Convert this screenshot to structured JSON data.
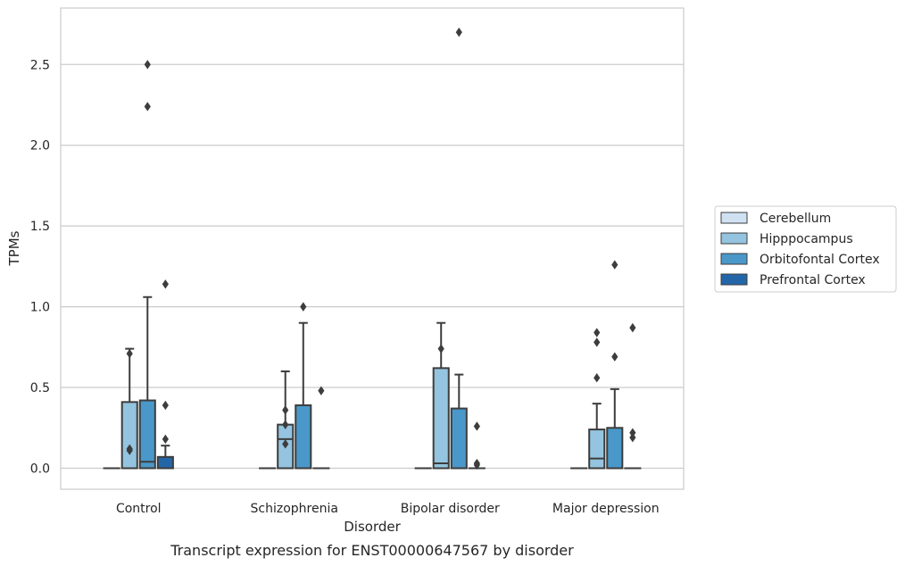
{
  "chart_data": {
    "type": "box",
    "title": "Transcript expression for ENST00000647567 by disorder",
    "xlabel": "Disorder",
    "ylabel": "TPMs",
    "ylim": [
      -0.13,
      2.85
    ],
    "yticks": [
      0.0,
      0.5,
      1.0,
      1.5,
      2.0,
      2.5
    ],
    "ytick_labels": [
      "0.0",
      "0.5",
      "1.0",
      "1.5",
      "2.0",
      "2.5"
    ],
    "grid": "horizontal",
    "legend_position": "right",
    "categories": [
      "Control",
      "Schizophrenia",
      "Bipolar disorder",
      "Major depression"
    ],
    "series": [
      {
        "name": "Cerebellum",
        "color": "#d0e1f2",
        "boxes": [
          {
            "q1": 0,
            "median": 0,
            "q3": 0,
            "whisker_low": 0,
            "whisker_high": 0,
            "outliers": []
          },
          {
            "q1": 0,
            "median": 0,
            "q3": 0,
            "whisker_low": 0,
            "whisker_high": 0,
            "outliers": []
          },
          {
            "q1": 0,
            "median": 0,
            "q3": 0,
            "whisker_low": 0,
            "whisker_high": 0,
            "outliers": []
          },
          {
            "q1": 0,
            "median": 0,
            "q3": 0,
            "whisker_low": 0,
            "whisker_high": 0,
            "outliers": []
          }
        ]
      },
      {
        "name": "Hipppocampus",
        "color": "#94c4df",
        "boxes": [
          {
            "q1": 0,
            "median": 0,
            "q3": 0.41,
            "whisker_low": 0,
            "whisker_high": 0.74,
            "outliers": [
              0.71,
              0.12,
              0.11
            ]
          },
          {
            "q1": 0,
            "median": 0.18,
            "q3": 0.27,
            "whisker_low": 0,
            "whisker_high": 0.6,
            "outliers": [
              0.36,
              0.27,
              0.15
            ]
          },
          {
            "q1": 0,
            "median": 0.03,
            "q3": 0.62,
            "whisker_low": 0,
            "whisker_high": 0.9,
            "outliers": [
              0.74
            ]
          },
          {
            "q1": 0,
            "median": 0.06,
            "q3": 0.24,
            "whisker_low": 0,
            "whisker_high": 0.4,
            "outliers": [
              0.84,
              0.78,
              0.56
            ]
          }
        ]
      },
      {
        "name": "Orbitofontal Cortex",
        "color": "#4a98c9",
        "boxes": [
          {
            "q1": 0,
            "median": 0.04,
            "q3": 0.42,
            "whisker_low": 0,
            "whisker_high": 1.06,
            "outliers": [
              2.5,
              2.24
            ]
          },
          {
            "q1": 0,
            "median": 0,
            "q3": 0.39,
            "whisker_low": 0,
            "whisker_high": 0.9,
            "outliers": [
              1.0
            ]
          },
          {
            "q1": 0,
            "median": 0,
            "q3": 0.37,
            "whisker_low": 0,
            "whisker_high": 0.58,
            "outliers": [
              2.7
            ]
          },
          {
            "q1": 0,
            "median": 0,
            "q3": 0.25,
            "whisker_low": 0,
            "whisker_high": 0.49,
            "outliers": [
              1.26,
              0.69
            ]
          }
        ]
      },
      {
        "name": "Prefrontal Cortex",
        "color": "#2366a8",
        "boxes": [
          {
            "q1": 0,
            "median": 0,
            "q3": 0.07,
            "whisker_low": 0,
            "whisker_high": 0.14,
            "outliers": [
              1.14,
              0.39,
              0.18
            ]
          },
          {
            "q1": 0,
            "median": 0,
            "q3": 0,
            "whisker_low": 0,
            "whisker_high": 0,
            "outliers": [
              0.48
            ]
          },
          {
            "q1": 0,
            "median": 0,
            "q3": 0,
            "whisker_low": 0,
            "whisker_high": 0,
            "outliers": [
              0.26,
              0.03,
              0.02
            ]
          },
          {
            "q1": 0,
            "median": 0,
            "q3": 0,
            "whisker_low": 0,
            "whisker_high": 0,
            "outliers": [
              0.87,
              0.22,
              0.19
            ]
          }
        ]
      }
    ]
  }
}
